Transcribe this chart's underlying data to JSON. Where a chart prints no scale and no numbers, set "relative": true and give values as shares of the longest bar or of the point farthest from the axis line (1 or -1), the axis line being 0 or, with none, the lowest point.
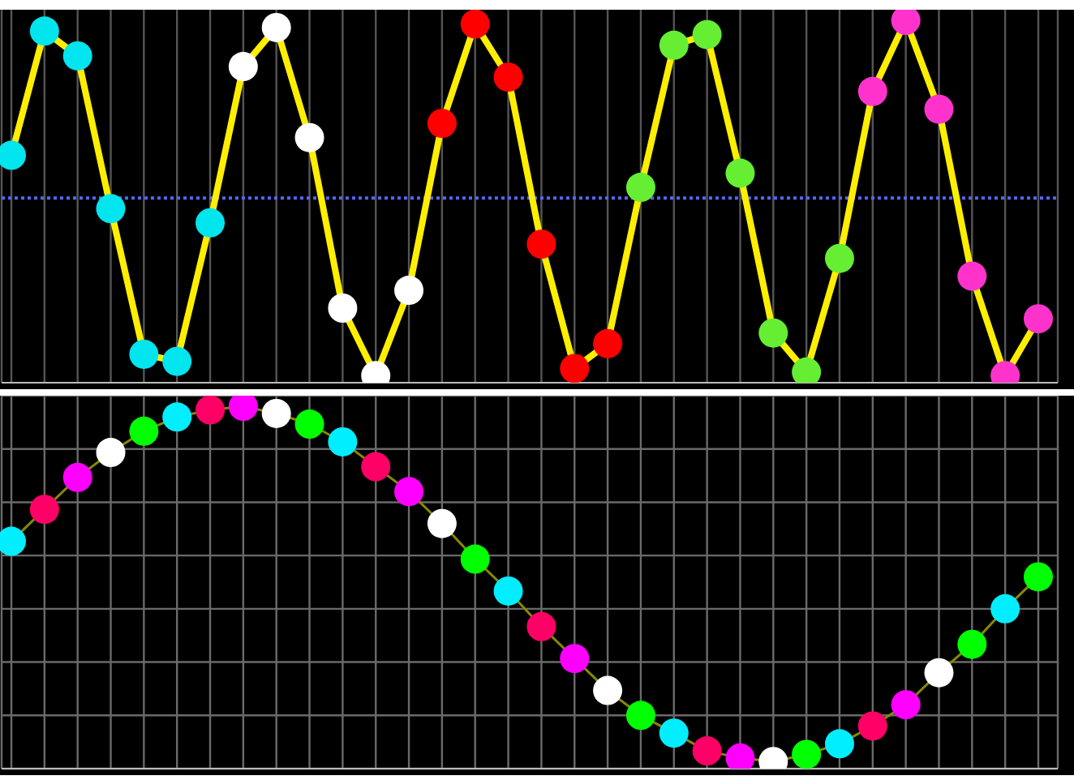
{
  "chart_data": [
    {
      "type": "line",
      "relative": true,
      "grid": "x",
      "tick_labels": false,
      "marker": "circle",
      "categories": [
        null,
        null,
        null,
        null,
        null,
        null,
        null,
        null,
        null,
        null,
        null,
        null,
        null,
        null,
        null,
        null,
        null,
        null,
        null,
        null,
        null,
        null,
        null,
        null,
        null,
        null,
        null,
        null,
        null,
        null,
        null,
        null
      ],
      "ref_lines": [
        {
          "axis": "y",
          "value": 0.5,
          "color": "#5566ff",
          "line_style": "dotted"
        }
      ],
      "series": [
        {
          "color": "#ffee00",
          "values": [
            0.62,
            0.97,
            0.9,
            0.47,
            0.06,
            0.04,
            0.43,
            0.87,
            0.98,
            0.67,
            0.19,
            0,
            0.24,
            0.71,
            0.99,
            0.84,
            0.37,
            0.02,
            0.09,
            0.53,
            0.93,
            0.96,
            0.57,
            0.12,
            0.01,
            0.33,
            0.8,
            1,
            0.75,
            0.28,
            0,
            0.16
          ],
          "colors": [
            "#00e5ee",
            "#00e5ee",
            "#00e5ee",
            "#00e5ee",
            "#00e5ee",
            "#00e5ee",
            "#00e5ee",
            "#ffffff",
            "#ffffff",
            "#ffffff",
            "#ffffff",
            "#ffffff",
            "#ffffff",
            "#ff0000",
            "#ff0000",
            "#ff0000",
            "#ff0000",
            "#ff0000",
            "#ff0000",
            "#66ee33",
            "#66ee33",
            "#66ee33",
            "#66ee33",
            "#66ee33",
            "#66ee33",
            "#66ee33",
            "#ff33cc",
            "#ff33cc",
            "#ff33cc",
            "#ff33cc",
            "#ff33cc",
            "#ff33cc"
          ]
        }
      ]
    },
    {
      "type": "line",
      "relative": true,
      "grid": true,
      "tick_labels": false,
      "marker": "circle",
      "categories": [
        null,
        null,
        null,
        null,
        null,
        null,
        null,
        null,
        null,
        null,
        null,
        null,
        null,
        null,
        null,
        null,
        null,
        null,
        null,
        null,
        null,
        null,
        null,
        null,
        null,
        null,
        null,
        null,
        null,
        null,
        null,
        null
      ],
      "series": [
        {
          "color": "#888800",
          "values": [
            0.62,
            0.71,
            0.8,
            0.87,
            0.93,
            0.97,
            0.99,
            1,
            0.98,
            0.95,
            0.9,
            0.83,
            0.76,
            0.67,
            0.57,
            0.48,
            0.38,
            0.29,
            0.2,
            0.13,
            0.08,
            0.03,
            0.01,
            0,
            0.02,
            0.05,
            0.1,
            0.16,
            0.25,
            0.33,
            0.43,
            0.52
          ],
          "colors": [
            "#00eeff",
            "#ff0066",
            "#ff00ff",
            "#ffffff",
            "#00ff00",
            "#00eeff",
            "#ff0066",
            "#ff00ff",
            "#ffffff",
            "#00ff00",
            "#00eeff",
            "#ff0066",
            "#ff00ff",
            "#ffffff",
            "#00ff00",
            "#00eeff",
            "#ff0066",
            "#ff00ff",
            "#ffffff",
            "#00ff00",
            "#00eeff",
            "#ff0066",
            "#ff00ff",
            "#ffffff",
            "#00ff00",
            "#00eeff",
            "#ff0066",
            "#ff00ff",
            "#ffffff",
            "#00ff00",
            "#00eeff",
            "#00ff00"
          ]
        }
      ]
    }
  ]
}
